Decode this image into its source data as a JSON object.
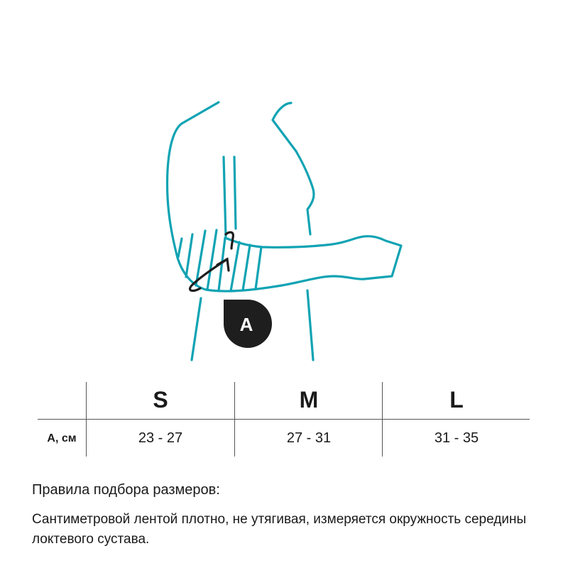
{
  "illustration": {
    "badge_label": "A",
    "colors": {
      "outline": "#10a3b3",
      "badge": "#1e1e1e",
      "arrow": "#1e1e1e"
    }
  },
  "table": {
    "sizes": [
      "S",
      "M",
      "L"
    ],
    "row_label": "А, см",
    "values": [
      "23 - 27",
      "27 - 31",
      "31 - 35"
    ]
  },
  "rules": {
    "title": "Правила подбора размеров:",
    "text": "Сантиметровой лентой плотно, не утягивая, измеряется окружность середины локтевого сустава."
  }
}
